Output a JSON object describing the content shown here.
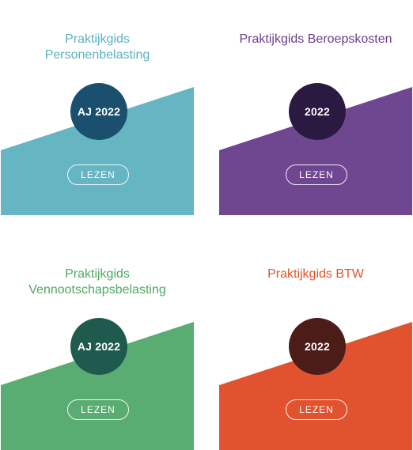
{
  "cards": [
    {
      "title_line1": "Praktijkgids",
      "title_line2": "Personenbelasting",
      "badge": "AJ 2022",
      "button": "LEZEN",
      "colors": {
        "title": "#5ab0bf",
        "shape": "#65b5c3",
        "badge": "#1b4f6e"
      }
    },
    {
      "title_line1": "Praktijkgids Beroepskosten",
      "title_line2": "",
      "badge": "2022",
      "button": "LEZEN",
      "colors": {
        "title": "#6b3d8e",
        "shape": "#6f4791",
        "badge": "#2a1a42"
      }
    },
    {
      "title_line1": "Praktijkgids",
      "title_line2": "Vennootschapsbelasting",
      "badge": "AJ 2022",
      "button": "LEZEN",
      "colors": {
        "title": "#4fa862",
        "shape": "#5aad72",
        "badge": "#1f5a4f"
      }
    },
    {
      "title_line1": "Praktijkgids BTW",
      "title_line2": "",
      "badge": "2022",
      "button": "LEZEN",
      "colors": {
        "title": "#e0532a",
        "shape": "#e0532e",
        "badge": "#4b1c18"
      }
    }
  ]
}
